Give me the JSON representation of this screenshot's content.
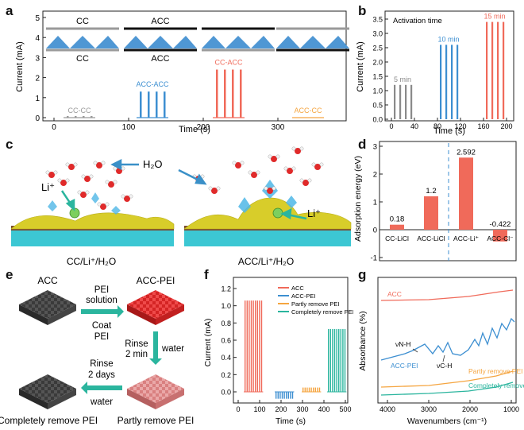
{
  "panels": {
    "a": {
      "letter": "a",
      "ylabel": "Current (mA)",
      "xlabel": "Time (s)",
      "yticks": [
        "0",
        "1",
        "2",
        "3",
        "4",
        "5"
      ],
      "xticks": [
        "0",
        "100",
        "200",
        "300"
      ],
      "schematic": [
        {
          "top": "CC",
          "bottom": "CC"
        },
        {
          "top": "ACC",
          "bottom": "ACC"
        },
        {
          "top": "",
          "bottom": ""
        },
        {
          "top": "",
          "bottom": ""
        }
      ],
      "groups": [
        {
          "label": "CC-CC",
          "color": "#9a9a9a",
          "height": 0.08
        },
        {
          "label": "ACC-ACC",
          "color": "#3d8fd1",
          "height": 1.3
        },
        {
          "label": "CC-ACC",
          "color": "#f06a5a",
          "height": 2.4
        },
        {
          "label": "ACC-CC",
          "color": "#f5a540",
          "height": 0.0
        }
      ]
    },
    "b": {
      "letter": "b",
      "title": "Activation time",
      "ylabel": "Current (mA)",
      "xlabel": "Time (s)",
      "yticks": [
        "0.0",
        "0.5",
        "1.0",
        "1.5",
        "2.0",
        "2.5",
        "3.0",
        "3.5"
      ],
      "xticks": [
        "0",
        "40",
        "80",
        "120",
        "160",
        "200"
      ],
      "groups": [
        {
          "label": "5 min",
          "color": "#8a8a8a",
          "height": 1.2
        },
        {
          "label": "10 min",
          "color": "#3d8fd1",
          "height": 2.6
        },
        {
          "label": "15 min",
          "color": "#f06a5a",
          "height": 3.4
        }
      ]
    },
    "c": {
      "letter": "c",
      "labels": {
        "left": "CC/Li⁺/H₂O",
        "right": "ACC/Li⁺/H₂O",
        "h2o": "H₂O",
        "li1": "Li⁺",
        "li2": "Li⁺"
      }
    },
    "d": {
      "letter": "d",
      "ylabel": "Adsorption energy (eV)",
      "yticks": [
        "-1",
        "0",
        "1",
        "2",
        "3"
      ],
      "categories": [
        "CC-LiCl",
        "ACC-LiCl",
        "ACC-Li⁺",
        "ACC-Cl⁻"
      ],
      "values": [
        0.18,
        1.2,
        2.592,
        -0.422
      ],
      "value_labels": [
        "0.18",
        "1.2",
        "2.592",
        "-0.422"
      ],
      "color": "#f06a5a"
    },
    "e": {
      "letter": "e",
      "labels": {
        "acc": "ACC",
        "acc_pei": "ACC-PEI",
        "step1_top": "PEI",
        "step1_mid": "solution",
        "step1_b1": "Coat",
        "step1_b2": "PEI",
        "step2_l1": "Rinse",
        "step2_l2": "2 min",
        "step2_r": "water",
        "step3_l1": "Rinse",
        "step3_l2": "2 days",
        "step3_b": "water",
        "complete": "Completely remove PEI",
        "partly": "Partly remove PEI"
      }
    },
    "f": {
      "letter": "f",
      "ylabel": "Current (mA)",
      "xlabel": "Time (s)",
      "yticks": [
        "0.0",
        "0.2",
        "0.4",
        "0.6",
        "0.8",
        "1.0",
        "1.2"
      ],
      "xticks": [
        "0",
        "100",
        "200",
        "300",
        "400",
        "500"
      ],
      "legend": [
        {
          "label": "ACC",
          "color": "#f06a5a"
        },
        {
          "label": "ACC-PEI",
          "color": "#3d8fd1"
        },
        {
          "label": "Partly remove PEI",
          "color": "#f5a540"
        },
        {
          "label": "Completely remove PEI",
          "color": "#2bb59e"
        }
      ]
    },
    "g": {
      "letter": "g",
      "ylabel": "Absorbance (%)",
      "xlabel": "Wavenumbers (cm⁻¹)",
      "xticks": [
        "4000",
        "3000",
        "2000",
        "1000"
      ],
      "curves": [
        {
          "label": "ACC",
          "color": "#f06a5a"
        },
        {
          "label": "ACC-PEI",
          "color": "#3d8fd1"
        },
        {
          "label": "Partly remove PEI",
          "color": "#f5a540"
        },
        {
          "label": "Completely remove PEI",
          "color": "#2bb59e"
        }
      ],
      "annotations": {
        "nh": "νN-H",
        "ch": "νC-H"
      }
    }
  }
}
